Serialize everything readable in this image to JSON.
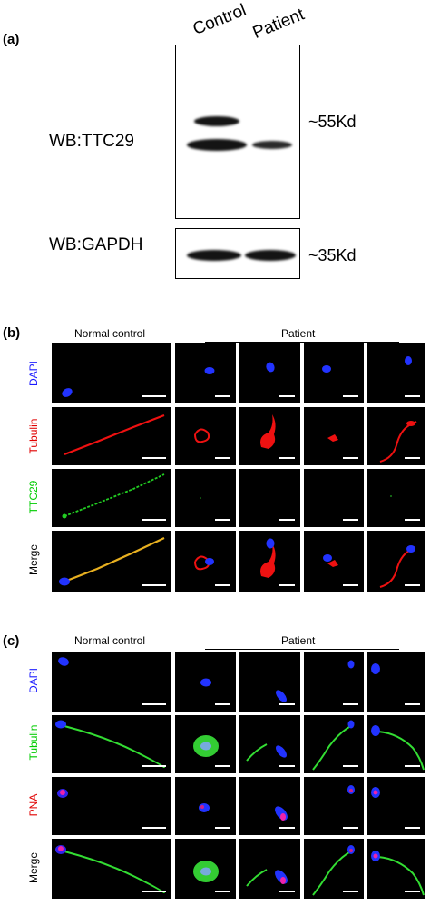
{
  "panel_a": {
    "letter": "(a)",
    "lanes": [
      "Control",
      "Patient"
    ],
    "wb_ttc29": "WB:TTC29",
    "wb_gapdh": "WB:GAPDH",
    "kd_55": "~55Kd",
    "kd_35": "~35Kd"
  },
  "panel_b": {
    "letter": "(b)",
    "normal_control": "Normal control",
    "patient": "Patient",
    "rows": [
      {
        "label": "DAPI",
        "color": "#1a1aff"
      },
      {
        "label": "Tubulin",
        "color": "#e00000"
      },
      {
        "label": "TTC29",
        "color": "#00cc00"
      },
      {
        "label": "Merge",
        "color": "#000000"
      }
    ]
  },
  "panel_c": {
    "letter": "(c)",
    "normal_control": "Normal control",
    "patient": "Patient",
    "rows": [
      {
        "label": "DAPI",
        "color": "#1a1aff"
      },
      {
        "label": "Tubulin",
        "color": "#00cc00"
      },
      {
        "label": "PNA",
        "color": "#e00000"
      },
      {
        "label": "Merge",
        "color": "#000000"
      }
    ]
  }
}
